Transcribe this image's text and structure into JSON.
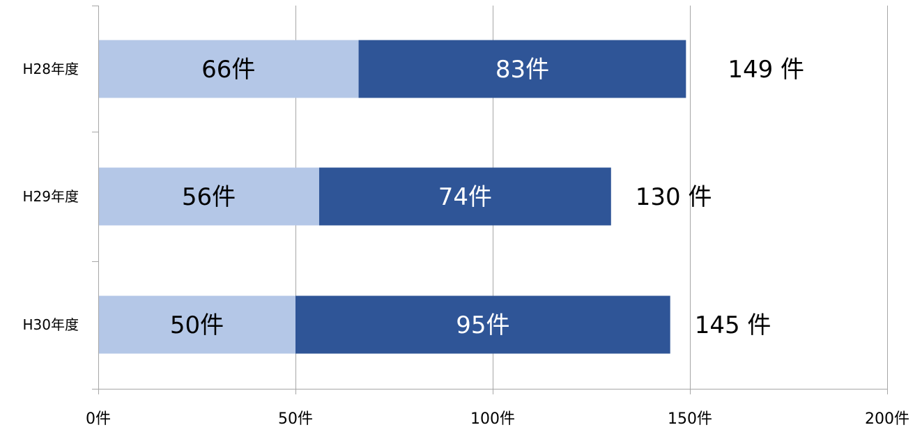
{
  "chart_data": {
    "type": "bar",
    "orientation": "horizontal",
    "stacked": true,
    "categories": [
      "H28年度",
      "H29年度",
      "H30年度"
    ],
    "series": [
      {
        "values": [
          66,
          56,
          50
        ],
        "color": "#b4c7e7",
        "value_labels": [
          "66件",
          "56件",
          "50件"
        ],
        "label_color": "#000000"
      },
      {
        "values": [
          83,
          74,
          95
        ],
        "color": "#2f5597",
        "value_labels": [
          "83件",
          "74件",
          "95件"
        ],
        "label_color": "#ffffff"
      }
    ],
    "totals": [
      149,
      130,
      145
    ],
    "total_labels": [
      "149 件",
      "130 件",
      "145 件"
    ],
    "xlim": [
      0,
      200
    ],
    "x_ticks": [
      0,
      50,
      100,
      150,
      200
    ],
    "x_tick_labels": [
      "0件",
      "50件",
      "100件",
      "150件",
      "200件"
    ],
    "grid": true,
    "legend": "none",
    "title": "",
    "xlabel": "",
    "ylabel": ""
  }
}
